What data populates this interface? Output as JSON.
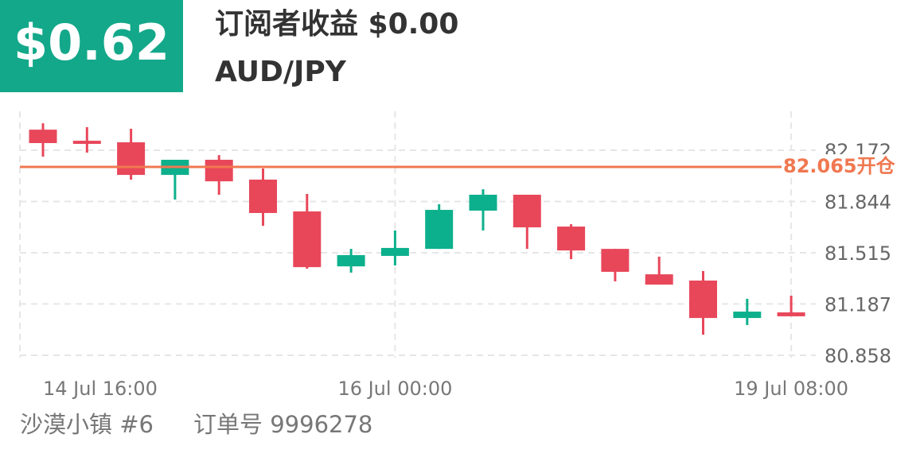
{
  "header": {
    "profit_badge": "$0.62",
    "subscriber_profit": "订阅者收益 $0.00"
  },
  "chart_data": {
    "type": "candlestick",
    "title": "AUD/JPY",
    "categories": [
      "14 Jul  16:00",
      null,
      null,
      null,
      null,
      null,
      null,
      null,
      "16 Jul  00:00",
      null,
      null,
      null,
      null,
      null,
      null,
      null,
      null,
      "19 Jul  08:00"
    ],
    "open": [
      82.304,
      82.233,
      82.223,
      82.014,
      82.111,
      81.984,
      81.78,
      81.428,
      81.495,
      81.54,
      81.785,
      81.887,
      81.683,
      81.54,
      81.377,
      81.337,
      81.097,
      81.133
    ],
    "high": [
      82.345,
      82.32,
      82.31,
      82.111,
      82.141,
      82.055,
      81.892,
      81.54,
      81.658,
      81.826,
      81.922,
      81.887,
      81.698,
      81.54,
      81.49,
      81.398,
      81.22,
      81.24
    ],
    "low": [
      82.131,
      82.157,
      81.984,
      81.856,
      81.887,
      81.688,
      81.413,
      81.388,
      81.434,
      81.54,
      81.658,
      81.54,
      81.474,
      81.332,
      81.311,
      80.99,
      81.052,
      81.108
    ],
    "close": [
      82.218,
      82.213,
      82.014,
      82.111,
      81.973,
      81.77,
      81.423,
      81.5,
      81.546,
      81.79,
      81.887,
      81.678,
      81.53,
      81.393,
      81.311,
      81.097,
      81.138,
      81.108
    ],
    "up_color": "#0db08c",
    "down_color": "#e8475a",
    "ylim": [
      80.8,
      82.43
    ],
    "yticks": [
      80.858,
      81.187,
      81.515,
      81.844,
      82.172
    ],
    "grid": true,
    "open_line": {
      "value": 82.065,
      "label": "82.065开仓",
      "color": "#f07850"
    }
  },
  "footer": {
    "user": "沙漠小镇 #6",
    "order": "订单号 9996278"
  }
}
